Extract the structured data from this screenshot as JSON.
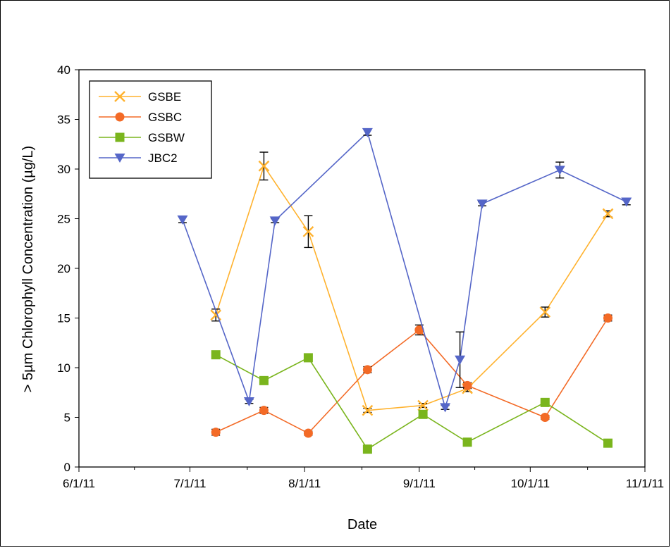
{
  "chart_data": {
    "type": "line",
    "title": "",
    "xlabel": "Date",
    "ylabel": "> 5µm Chlorophyll Concentration (µg/L)",
    "ylim": [
      0,
      40
    ],
    "yticks": [
      0,
      5,
      10,
      15,
      20,
      25,
      30,
      35,
      40
    ],
    "xlim": [
      "2011-06-01",
      "2011-11-01"
    ],
    "xticks": [
      {
        "date": "2011-06-01",
        "label": "6/1/11"
      },
      {
        "date": "2011-07-01",
        "label": "7/1/11"
      },
      {
        "date": "2011-08-01",
        "label": "8/1/11"
      },
      {
        "date": "2011-09-01",
        "label": "9/1/11"
      },
      {
        "date": "2011-10-01",
        "label": "10/1/11"
      },
      {
        "date": "2011-11-01",
        "label": "11/1/11"
      }
    ],
    "grid": false,
    "legend": "top-left",
    "series": [
      {
        "name": "GSBE",
        "color": "#FFB22E",
        "marker": "x",
        "points": [
          {
            "x": "2011-07-08",
            "y": 15.3,
            "err": 0.6
          },
          {
            "x": "2011-07-21",
            "y": 30.3,
            "err": 1.4
          },
          {
            "x": "2011-08-02",
            "y": 23.7,
            "err": 1.6
          },
          {
            "x": "2011-08-18",
            "y": 5.7,
            "err": 0.2
          },
          {
            "x": "2011-09-02",
            "y": 6.2,
            "err": 0.2
          },
          {
            "x": "2011-09-14",
            "y": 7.9,
            "err": 0.3
          },
          {
            "x": "2011-10-05",
            "y": 15.6,
            "err": 0.5
          },
          {
            "x": "2011-10-22",
            "y": 25.5,
            "err": 0.3
          }
        ]
      },
      {
        "name": "GSBC",
        "color": "#F36A26",
        "marker": "circle",
        "points": [
          {
            "x": "2011-07-08",
            "y": 3.5,
            "err": 0.3
          },
          {
            "x": "2011-07-21",
            "y": 5.7,
            "err": 0.3
          },
          {
            "x": "2011-08-02",
            "y": 3.4,
            "err": 0.2
          },
          {
            "x": "2011-08-18",
            "y": 9.8,
            "err": 0.3
          },
          {
            "x": "2011-09-01",
            "y": 13.8,
            "err": 0.5
          },
          {
            "x": "2011-09-14",
            "y": 8.2,
            "err": 0.3
          },
          {
            "x": "2011-10-05",
            "y": 5.0,
            "err": 0.2
          },
          {
            "x": "2011-10-22",
            "y": 15.0,
            "err": 0.3
          }
        ]
      },
      {
        "name": "GSBW",
        "color": "#7AB51D",
        "marker": "square",
        "points": [
          {
            "x": "2011-07-08",
            "y": 11.3,
            "err": 0.3
          },
          {
            "x": "2011-07-21",
            "y": 8.7,
            "err": 0.2
          },
          {
            "x": "2011-08-02",
            "y": 11.0,
            "err": 0.3
          },
          {
            "x": "2011-08-18",
            "y": 1.8,
            "err": 0.1
          },
          {
            "x": "2011-09-02",
            "y": 5.3,
            "err": 0.2
          },
          {
            "x": "2011-09-14",
            "y": 2.5,
            "err": 0.1
          },
          {
            "x": "2011-10-05",
            "y": 6.5,
            "err": 0.2
          },
          {
            "x": "2011-10-22",
            "y": 2.4,
            "err": 0.1
          }
        ]
      },
      {
        "name": "JBC2",
        "color": "#5566C8",
        "marker": "triangle-down",
        "points": [
          {
            "x": "2011-06-29",
            "y": 24.9,
            "err": 0.3
          },
          {
            "x": "2011-07-17",
            "y": 6.6,
            "err": 0.2
          },
          {
            "x": "2011-07-24",
            "y": 24.8,
            "err": 0.2
          },
          {
            "x": "2011-08-18",
            "y": 33.7,
            "err": 0.3
          },
          {
            "x": "2011-09-08",
            "y": 6.0,
            "err": 0.2
          },
          {
            "x": "2011-09-12",
            "y": 10.8,
            "err": 2.8
          },
          {
            "x": "2011-09-18",
            "y": 26.5,
            "err": 0.2
          },
          {
            "x": "2011-10-09",
            "y": 29.9,
            "err": 0.8
          },
          {
            "x": "2011-10-27",
            "y": 26.7,
            "err": 0.3
          }
        ]
      }
    ]
  }
}
